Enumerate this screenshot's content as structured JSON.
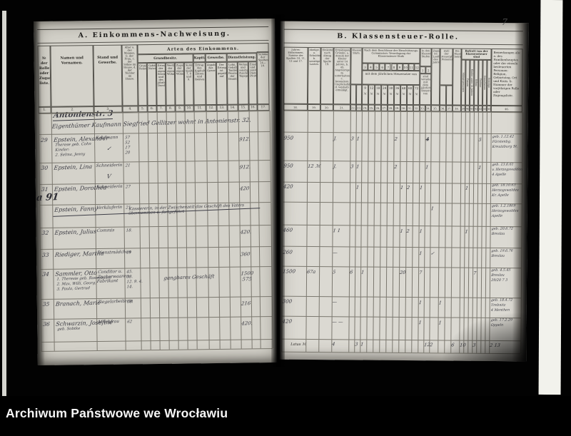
{
  "archive": {
    "watermark": "Archiwum Państwowe we Wrocławiu",
    "page_number": "7"
  },
  "left_page": {
    "title": "A. Einkommens-Nachweisung.",
    "arten_header": "Arten des Einkommens.",
    "groups": {
      "grundbesitz": "Grundbesitz.",
      "kapital": "Kapital.",
      "gewerbe": "Gewerbe.",
      "dienstleistung": "Dienstleistung."
    },
    "columns": {
      "c1": "№ der Rolle oder Zugangs-liste.",
      "c2": "Namen und Vornamen.",
      "c3": "Stand und Gewerbe.",
      "c4": "Alter a. des Mannes, b. der Frau, c. der Söhne im Hause, d. der Töchter im Hause.",
      "c5": "Grundsteuer-Reinertrag.",
      "c6": "Gebäudesteuer-Nutzungswerth.",
      "c7": "Ertrag der eigenen Bewirthschaftung und des jährlichen Durchschnitts.",
      "c8": "Werth der eigenen Wohnung.",
      "c9": "Zugang der eigenen Wohnung.",
      "c10": "Summe der Spalten 7, 8 und 9.",
      "c11": "Ertrag des Kapitalvermögens, Zinsen und Renten.",
      "c12": "Angabe des Gewerbes.",
      "c13": "Der Ertrag ist geprüft auf",
      "c14": "Lohn, Gehalt, Tantième, Pension der Beamten.",
      "c15": "Wohnungsgeld und sonstige Zuschüsse, Tagegelder.",
      "c16": "Emolumente und sonstige Dienstbezüge (Naturalantheil).",
      "c17": "Summe der Spalten 14—16."
    },
    "col_numbers": [
      "1.",
      "2.",
      "3.",
      "4.",
      "5.",
      "6.",
      "7.",
      "8.",
      "9.",
      "10.",
      "11.",
      "12.",
      "13.",
      "14.",
      "15.",
      "16.",
      "17."
    ],
    "street_header": {
      "line1": "Antonienstr. 3",
      "line2": "Eigenthümer Kaufmann Siegfried Gellitzer wohnt in Antonienstr. 32."
    },
    "margin_note": "a 91",
    "rows": [
      {
        "no": "29",
        "name": "Epstein, Alexander",
        "name_sub": [
          "Therese geb. Cohn",
          "Kinder:",
          "2. Selma, Jenny"
        ],
        "stand": "Kaufmann",
        "stand_mark": "✓",
        "alter": [
          "57",
          "52",
          "17",
          "20"
        ],
        "value": "912."
      },
      {
        "no": "30",
        "name": "Epstein, Lina",
        "name_sub": [],
        "stand": "Schneiderin",
        "stand_mark": "V",
        "alter": [
          "21"
        ],
        "value": "912."
      },
      {
        "no": "31",
        "name": "Epstein, Dorothea",
        "name_sub": [],
        "stand": "Schneiderin",
        "stand_mark": "",
        "alter": [
          "27"
        ],
        "value": "420"
      },
      {
        "no": "",
        "struck": true,
        "name": "Epstein, Fanny",
        "name_sub": [],
        "stand": "Verkäuferin",
        "stand_mark": "",
        "alter": [
          "21"
        ],
        "note": "Kassiererin, in der Zwischenzeit das Geschäft des Vaters übernommen u. fortgeführt",
        "value": ""
      },
      {
        "no": "32",
        "name": "Epstein, Julius",
        "name_sub": [],
        "stand": "Commis",
        "stand_mark": "",
        "alter": [
          "18."
        ],
        "value": "420."
      },
      {
        "no": "33",
        "name": "Riediger, Martha",
        "name_sub": [],
        "stand": "Dienstmädchen",
        "stand_mark": "",
        "alter": [
          "19"
        ],
        "value": "360"
      },
      {
        "no": "34",
        "name": "Sammler, Otto",
        "name_sub": [
          "1. Theresie geb. Rosenbaum",
          "2. Max, Willi, Georg,",
          "3. Paula, Gertrud"
        ],
        "stand": "Conditor u. Zuckerwaaren-Fabrikant",
        "stand_mark": "",
        "alter": [
          "45.",
          "38.",
          "12. 9. 4.",
          "14."
        ],
        "note": "gangbares Geschäft",
        "value": "1500",
        "value2": "575"
      },
      {
        "no": "35",
        "name": "Branach, Marie",
        "name_sub": [],
        "stand": "Ziegelarbeiterin",
        "stand_mark": "",
        "alter": [
          "18."
        ],
        "value": "216"
      },
      {
        "no": "36",
        "name": "Schwarzin, Josefine",
        "name_sub": [
          "geb. Sobtke"
        ],
        "stand": "Milchfrau",
        "stand_mark": "",
        "alter": [
          "62"
        ],
        "value": "420."
      }
    ]
  },
  "right_page": {
    "title": "B. Klassensteuer-Rolle.",
    "columns": {
      "c18": "Jahres-Einkommen. Summe der Spalten 10, 11, 13 und 17.",
      "c19": "Abzüge. a. Schuldenzinsen, b. sonstige Lasten.",
      "c20": "Einkommen nach Abzug der Spalte 19.",
      "c21": "Ermäßigungs-Gründe: a. Anzahl der Kinder unter 14 Jahren, b. ob Angehörige zu unterhalten, c. besondere Unglücksfälle, d. weshalb ermäßigt.",
      "c22_23": "Klassensteuer-Stufe.",
      "commission_header": "Nach dem Beschlusse der Einschätzungs-Commission: Veranlagung der Klassensteuer-Stufe",
      "stufen": [
        "3",
        "4",
        "5",
        "6",
        "7",
        "8",
        "9",
        "10",
        "11",
        "12"
      ],
      "steuersatz_text": "mit dem jährlichen Steuersatze von",
      "saetze": [
        "9",
        "12",
        "18",
        "24",
        "30",
        "36",
        "48",
        "60",
        "72"
      ],
      "mark_sign": "ℳ",
      "c33_34": "In den Klassensteuer-Stufen",
      "c33_34_sub": [
        "1",
        "2"
      ],
      "c33_34_note": "sind veranlagt mit dem jährlichen Steuersatze von",
      "c35": "Zugang im Laufe des Jahres.",
      "c36_37": "Zahl der steuerpflichtigen Personen.",
      "c38": "Die Klassensteuer beträgt.",
      "befreit_header": "Befreit von der Klassensteuer sind",
      "befreit_cols": [
        "Militairpersonen",
        "Frauen",
        "Kinder unter 14 Jahren",
        "Söhne",
        "Töchter",
        "Dienstboten",
        "Sonstige"
      ],
      "c46": "Bemerkungen als: a. des Familienhauptes oder der einzeln besteuerten Personen: Religion, Geburtstag, Ort und Kreis. b. Nummer der vorjährigen Rolle oder Zugangsliste."
    },
    "col_numbers": [
      "18.",
      "19.",
      "20.",
      "21.",
      "22.",
      "23.",
      "24.",
      "25.",
      "26.",
      "27.",
      "28.",
      "29.",
      "30.",
      "31.",
      "32.",
      "33.",
      "34.",
      "35.",
      "36.",
      "37.",
      "38.",
      "39.",
      "40.",
      "41.",
      "42.",
      "43.",
      "44.",
      "45.",
      "46."
    ],
    "rows": [
      {
        "cells": [
          {
            "c": "c18",
            "v": "950"
          },
          {
            "c": "c21",
            "v": "J."
          },
          {
            "c": "c22",
            "v": "3"
          },
          {
            "c": "c23",
            "v": "1"
          },
          {
            "c": "c29",
            "v": "2"
          },
          {
            "c": "c34",
            "v": "4",
            "struck": true
          },
          {
            "c": "c43",
            "v": "5"
          }
        ],
        "remark": [
          "geb. 1.12.42",
          "Fürstenbg.",
          "Kreutzburg St."
        ]
      },
      {
        "cells": [
          {
            "c": "c18",
            "v": "950"
          },
          {
            "c": "c19",
            "v": "12 ℳ"
          },
          {
            "c": "c21",
            "v": "J."
          },
          {
            "c": "c22",
            "v": "3"
          },
          {
            "c": "c23",
            "v": "1"
          },
          {
            "c": "c29",
            "v": "2"
          },
          {
            "c": "c34",
            "v": "1"
          },
          {
            "c": "c43",
            "v": "1"
          }
        ],
        "remark": [
          "geb. 13.6.61",
          "v. Herzogswaldau",
          "4 Apelle"
        ]
      },
      {
        "cells": [
          {
            "c": "c18",
            "v": "420"
          },
          {
            "c": "c23",
            "v": "1"
          },
          {
            "c": "c30",
            "v": "1"
          },
          {
            "c": "c31",
            "v": "2"
          },
          {
            "c": "c33",
            "v": "1"
          },
          {
            "c": "c40",
            "v": "1"
          }
        ],
        "remark": [
          "geb. 18.10.63",
          "Herzogswaldau",
          "Kr. Apelle"
        ]
      },
      {
        "struck": true,
        "cells": [
          {
            "c": "c35",
            "v": "1"
          }
        ],
        "remark": [
          "geb. 1.2.1869",
          "Herzogswaldau",
          "Apelle"
        ]
      },
      {
        "cells": [
          {
            "c": "c18",
            "v": "460"
          },
          {
            "c": "c21",
            "v": "1  1"
          },
          {
            "c": "c30",
            "v": "1"
          },
          {
            "c": "c31",
            "v": "2"
          },
          {
            "c": "c33",
            "v": "1"
          },
          {
            "c": "c40",
            "v": "1"
          }
        ],
        "remark": [
          "geb. 20.6.72",
          "Breslau"
        ]
      },
      {
        "cells": [
          {
            "c": "c18",
            "v": "260"
          },
          {
            "c": "c21",
            "v": "—"
          },
          {
            "c": "c33",
            "v": "1"
          },
          {
            "c": "c35",
            "v": "✓"
          }
        ],
        "remark": [
          "geb. 19.6.76",
          "Breslau"
        ]
      },
      {
        "cells": [
          {
            "c": "c18",
            "v": "1500"
          },
          {
            "c": "c19",
            "v": "67a"
          },
          {
            "c": "c21",
            "v": "5"
          },
          {
            "c": "c22",
            "v": "6"
          },
          {
            "c": "c24",
            "v": "1"
          },
          {
            "c": "c30",
            "v": "20"
          },
          {
            "c": "c33",
            "v": "7"
          },
          {
            "c": "c42",
            "v": "7"
          }
        ],
        "remark": [
          "geb. 4.5.45",
          "Breslau",
          "29/20 7 3"
        ]
      },
      {
        "cells": [
          {
            "c": "c18",
            "v": "300"
          },
          {
            "c": "c21",
            "v": "—"
          },
          {
            "c": "c33",
            "v": "1"
          },
          {
            "c": "c36",
            "v": "1"
          }
        ],
        "remark": [
          "geb. 18.4.72",
          "Trebnitz",
          "4 Menthen"
        ]
      },
      {
        "cells": [
          {
            "c": "c18",
            "v": "420"
          },
          {
            "c": "c21",
            "v": "— —"
          },
          {
            "c": "c33",
            "v": "1"
          },
          {
            "c": "c36",
            "v": "1"
          }
        ],
        "remark": [
          "geb. 17.2.29",
          "Oppeln"
        ]
      }
    ],
    "latus": {
      "label": "Latus ℳ",
      "cells": [
        {
          "c": "c21",
          "v": "4"
        },
        {
          "c": "c23",
          "v": "3"
        },
        {
          "c": "c24",
          "v": "1"
        },
        {
          "c": "c34",
          "v": "12"
        },
        {
          "c": "c35",
          "v": "2"
        },
        {
          "c": "c38",
          "v": "6"
        },
        {
          "c": "c39",
          "v": "10"
        },
        {
          "c": "c42",
          "v": "3"
        },
        {
          "c": "c46",
          "v": "2   13"
        }
      ]
    }
  }
}
